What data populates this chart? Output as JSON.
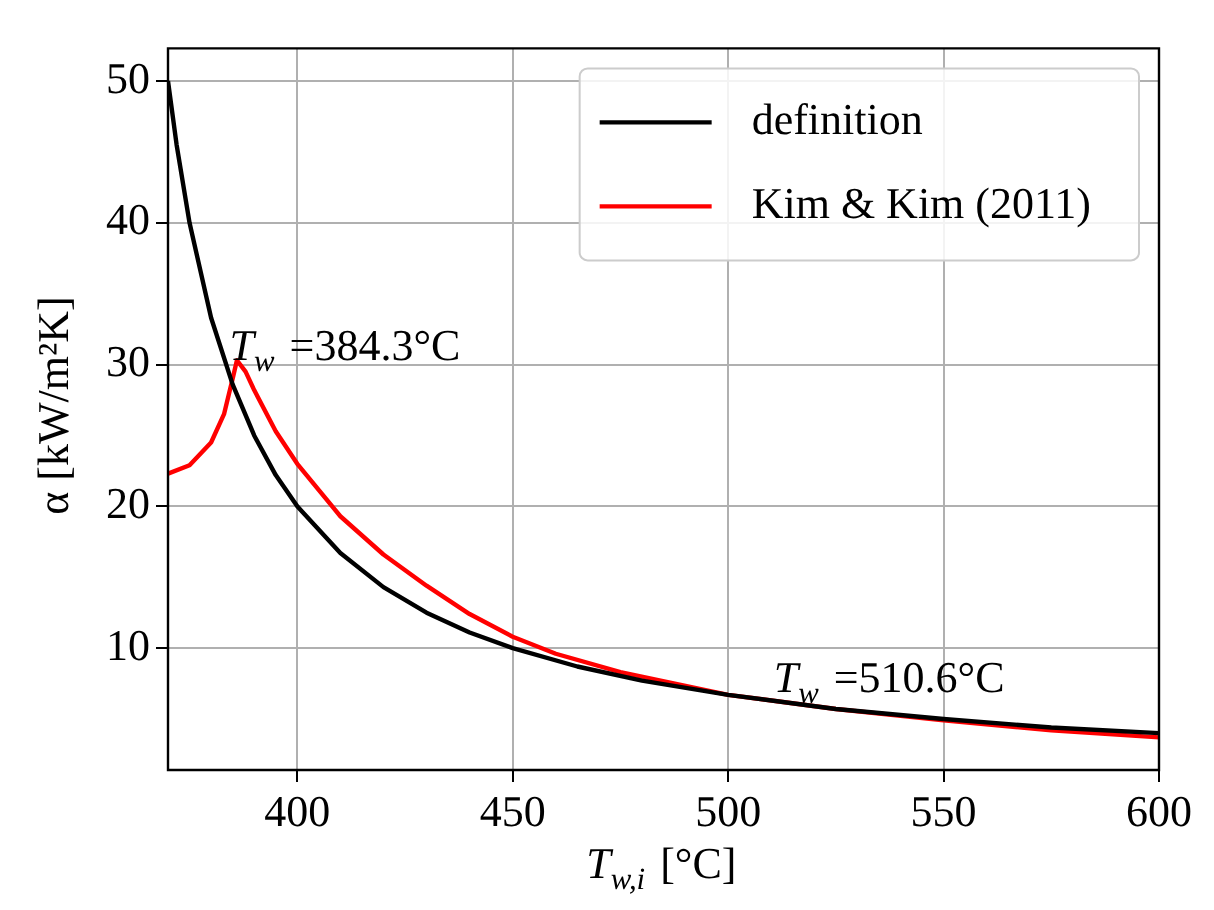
{
  "chart_data": {
    "type": "line",
    "xlabel": "T$_{w,i}$ [°C]",
    "ylabel": "α [kW/m²K]",
    "xlim": [
      370,
      600
    ],
    "xticks": [
      400,
      450,
      500,
      550,
      600
    ],
    "ylim": [
      1.4,
      52.3
    ],
    "yticks": [
      10,
      20,
      30,
      40,
      50
    ],
    "grid": true,
    "legend": "top right",
    "marker": "none",
    "line_style": "solid",
    "series": [
      {
        "name": "definition",
        "color": "#000000",
        "x": [
          370,
          372,
          375,
          380,
          385,
          390,
          395,
          400,
          410,
          420,
          430,
          440,
          450,
          465,
          480,
          500,
          525,
          550,
          575,
          600
        ],
        "values": [
          50,
          45.5,
          40,
          33.3,
          28.6,
          25,
          22.2,
          20,
          16.7,
          14.3,
          12.5,
          11.1,
          10,
          8.7,
          7.7,
          6.7,
          5.7,
          5,
          4.4,
          4
        ]
      },
      {
        "name": "Kim & Kim (2011)",
        "color": "#ff0000",
        "x": [
          370,
          375,
          380,
          383,
          385,
          386,
          388,
          390,
          395,
          400,
          410,
          420,
          430,
          440,
          450,
          460,
          475,
          500,
          525,
          550,
          575,
          600
        ],
        "values": [
          22.3,
          22.9,
          24.5,
          26.5,
          29,
          30.3,
          29.5,
          28.2,
          25.3,
          23,
          19.3,
          16.6,
          14.4,
          12.4,
          10.8,
          9.6,
          8.3,
          6.7,
          5.7,
          4.9,
          4.2,
          3.7
        ]
      }
    ],
    "annotations": [
      {
        "text": "T$_{w}$ =384.3°C",
        "x": 384.3,
        "y": 30.3
      },
      {
        "text": "T$_{w}$ =510.6°C",
        "x": 510.6,
        "y": 6.9
      }
    ]
  }
}
